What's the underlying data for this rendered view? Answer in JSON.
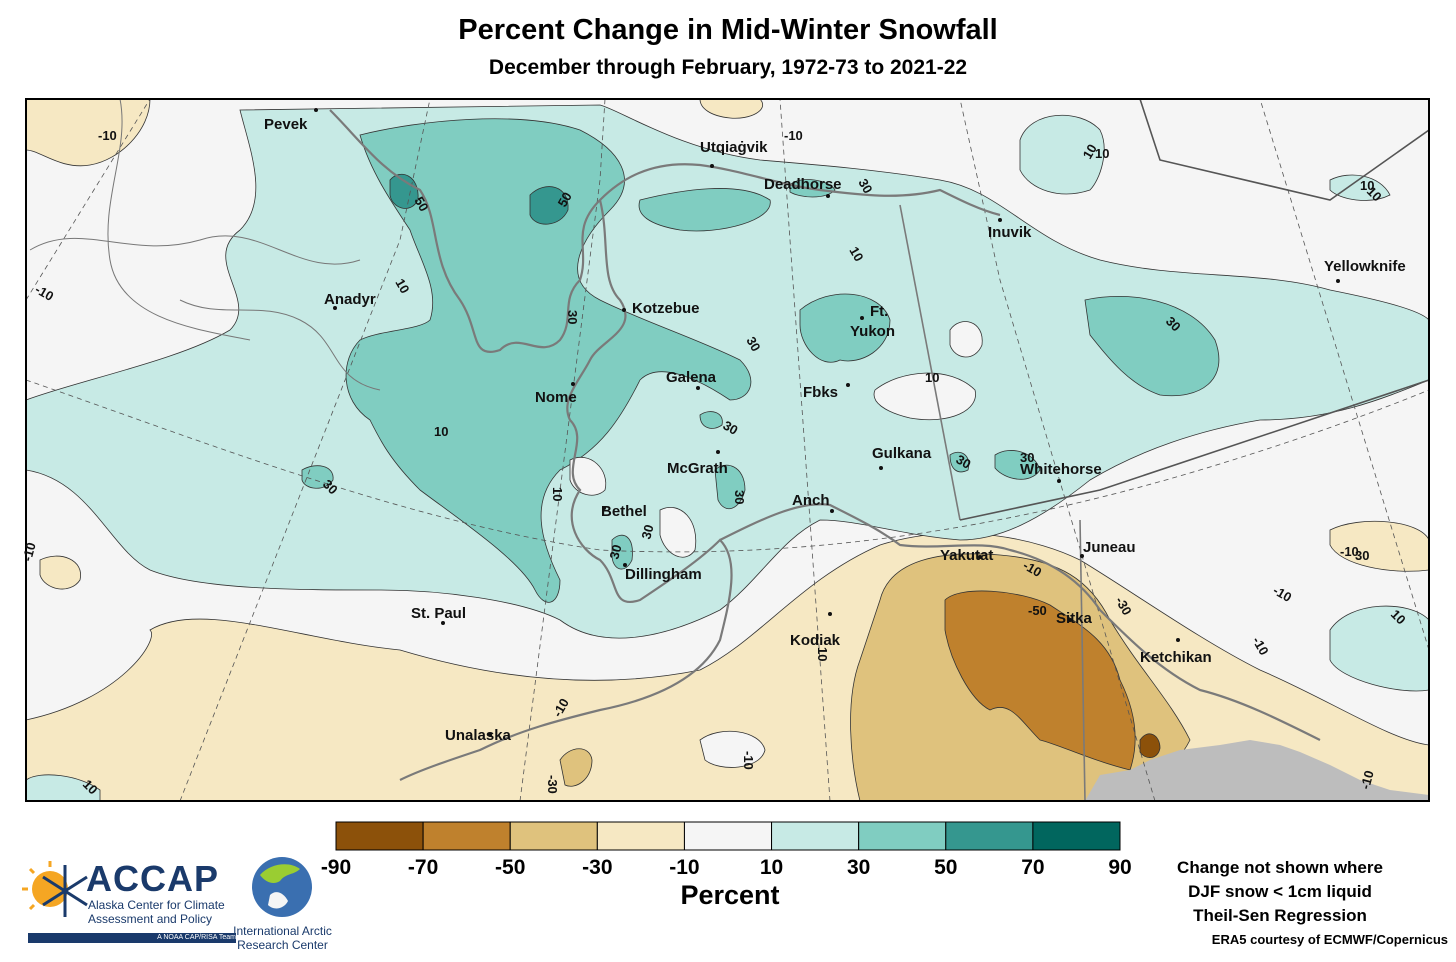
{
  "header": {
    "title": "Percent Change in Mid-Winter Snowfall",
    "subtitle": "December through February, 1972-73 to 2021-22"
  },
  "map": {
    "cities": [
      {
        "name": "Pevek",
        "key": "pevek"
      },
      {
        "name": "Utqiaġvik",
        "key": "utqiagvik"
      },
      {
        "name": "Deadhorse",
        "key": "deadhorse"
      },
      {
        "name": "Inuvik",
        "key": "inuvik"
      },
      {
        "name": "Yellowknife",
        "key": "yellowknife"
      },
      {
        "name": "Anadyr",
        "key": "anadyr"
      },
      {
        "name": "Kotzebue",
        "key": "kotzebue"
      },
      {
        "name": "Ft.",
        "key": "ft"
      },
      {
        "name": "Yukon",
        "key": "yukon"
      },
      {
        "name": "Galena",
        "key": "galena"
      },
      {
        "name": "Nome",
        "key": "nome"
      },
      {
        "name": "Fbks",
        "key": "fbks"
      },
      {
        "name": "McGrath",
        "key": "mcgrath"
      },
      {
        "name": "Gulkana",
        "key": "gulkana"
      },
      {
        "name": "Whitehorse",
        "key": "whitehorse"
      },
      {
        "name": "Anch",
        "key": "anch"
      },
      {
        "name": "Bethel",
        "key": "bethel"
      },
      {
        "name": "Dillingham",
        "key": "dillingham"
      },
      {
        "name": "Yakutat",
        "key": "yakutat"
      },
      {
        "name": "Juneau",
        "key": "juneau"
      },
      {
        "name": "St. Paul",
        "key": "stpaul"
      },
      {
        "name": "Sitka",
        "key": "sitka"
      },
      {
        "name": "Kodiak",
        "key": "kodiak"
      },
      {
        "name": "Ketchikan",
        "key": "ketchikan"
      },
      {
        "name": "Unalaska",
        "key": "unalaska"
      }
    ],
    "contour_labels": [
      "-10",
      "10",
      "50",
      "50",
      "30",
      "10",
      "10",
      "10",
      "30",
      "30",
      "30",
      "10",
      "30",
      "30",
      "30",
      "30",
      "30",
      "-10",
      "10",
      "30",
      "30",
      "10",
      "30",
      "-10",
      "-10",
      "-50",
      "-30",
      "-10",
      "-10",
      "-10",
      "10",
      "-10",
      "-30",
      "-10",
      "10",
      "-10",
      "10",
      "-10",
      "10",
      "10"
    ],
    "colors": {
      "land_outline": "#7a7a7a",
      "no_data": "#bdbdbd",
      "frame": "#000000"
    }
  },
  "legend": {
    "title": "Percent",
    "ticks": [
      "-90",
      "-70",
      "-50",
      "-30",
      "-10",
      "10",
      "30",
      "50",
      "70",
      "90"
    ],
    "colors": [
      "#8c510a",
      "#bf812d",
      "#dfc27d",
      "#f6e8c3",
      "#f5f5f5",
      "#c7eae5",
      "#80cdc1",
      "#35978f",
      "#01665e"
    ]
  },
  "notes": {
    "line1": "Change not shown where",
    "line2": "DJF snow < 1cm liquid",
    "line3": "Theil-Sen Regression",
    "credit": "ERA5 courtesy of ECMWF/Copernicus"
  },
  "logos": {
    "accap_name": "ACCAP",
    "accap_line1": "Alaska Center for Climate",
    "accap_line2": "Assessment and Policy",
    "accap_team": "A NOAA CAP/RISA Team",
    "iarc_line1": "International Arctic",
    "iarc_line2": "Research Center"
  }
}
